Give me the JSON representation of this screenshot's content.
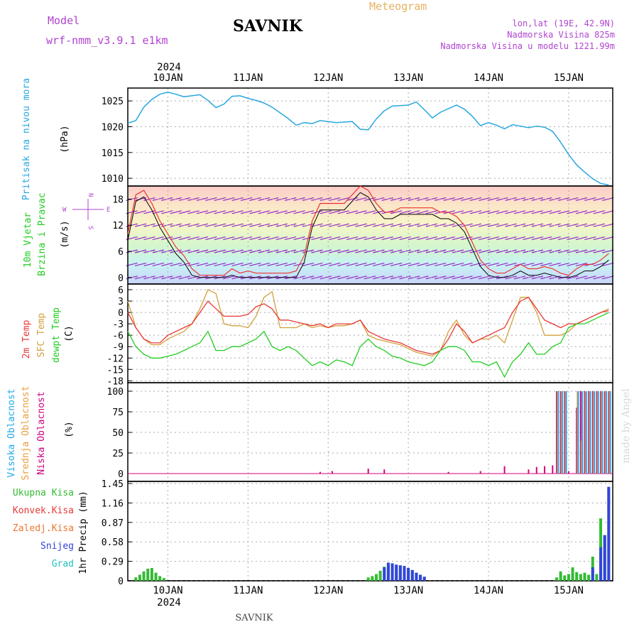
{
  "header": {
    "model_label": "Model",
    "model_name": "wrf-nmm_v3.9.1  e1km",
    "station": "SAVNIK",
    "meteogram": "Meteogram",
    "lonlat": "lon,lat (19E, 42.9N)",
    "altitude": "Nadmorska Visina 825m",
    "model_altitude": "Nadmorska Visina u modelu 1221.99m",
    "footer_station": "SAVNIK",
    "signature": "made by Angel"
  },
  "colors": {
    "pressure": "#29a8e0",
    "temp2m": "#e83838",
    "sfc": "#d4a03c",
    "dewpt": "#22cc22",
    "cloud_high": "#22a8e8",
    "cloud_mid": "#e8a040",
    "cloud_low": "#d0007c",
    "precip_total": "#33bb33",
    "precip_snow": "#3344dd",
    "header_purple": "#b044d0",
    "header_orange": "#e8b060"
  },
  "chart_data": [
    {
      "id": "pressure",
      "type": "line",
      "ylabel": "Pritisak na nivou mora",
      "unit": "(hPa)",
      "yticks": [
        1010,
        1015,
        1020,
        1025
      ],
      "ylim": [
        1008.5,
        1027.5
      ],
      "xlim": [
        -0.5,
        5.55
      ],
      "xtick_labels": [
        "10JAN",
        "11JAN",
        "12JAN",
        "13JAN",
        "14JAN",
        "15JAN"
      ],
      "year_label": "2024",
      "series": [
        {
          "x": [
            -0.5,
            -0.4,
            -0.3,
            -0.2,
            -0.1,
            0.0,
            0.1,
            0.2,
            0.3,
            0.4,
            0.5,
            0.6,
            0.7,
            0.8,
            0.9,
            1.0,
            1.1,
            1.2,
            1.3,
            1.4,
            1.5,
            1.6,
            1.7,
            1.8,
            1.9,
            2.0,
            2.1,
            2.2,
            2.3,
            2.4,
            2.5,
            2.6,
            2.7,
            2.8,
            2.9,
            3.0,
            3.1,
            3.2,
            3.3,
            3.4,
            3.5,
            3.6,
            3.7,
            3.8,
            3.9,
            4.0,
            4.1,
            4.2,
            4.3,
            4.4,
            4.5,
            4.6,
            4.7,
            4.8,
            4.9,
            5.0,
            5.1,
            5.2,
            5.3,
            5.4,
            5.5
          ],
          "values": [
            1020.7,
            1021.2,
            1023.8,
            1025.3,
            1026.3,
            1026.7,
            1026.3,
            1025.8,
            1026.0,
            1026.2,
            1025.1,
            1023.7,
            1024.4,
            1025.9,
            1026.0,
            1025.5,
            1025.1,
            1024.6,
            1023.8,
            1022.7,
            1021.6,
            1020.3,
            1020.8,
            1020.6,
            1021.2,
            1021.0,
            1020.8,
            1020.9,
            1021.0,
            1019.5,
            1019.4,
            1021.5,
            1023.1,
            1024.0,
            1024.1,
            1024.2,
            1024.8,
            1023.3,
            1021.7,
            1022.8,
            1023.5,
            1024.2,
            1023.4,
            1022.0,
            1020.2,
            1020.8,
            1020.3,
            1019.6,
            1020.4,
            1020.1,
            1019.8,
            1020.1,
            1019.9,
            1019.1,
            1017.0,
            1014.6,
            1012.6,
            1011.2,
            1009.9,
            1009.0,
            1008.7
          ]
        }
      ]
    },
    {
      "id": "wind",
      "type": "line",
      "ylabel_1": "10m Vjetar",
      "ylabel_2": "Brzina i Pravac",
      "unit": "(m/s)",
      "compass": {
        "n": "N",
        "s": "S",
        "w": "W",
        "e": "E"
      },
      "yticks": [
        0,
        6,
        12,
        18
      ],
      "ylim": [
        -1.5,
        21
      ],
      "series": [
        {
          "name": "speed",
          "x": [
            -0.5,
            -0.4,
            -0.3,
            -0.2,
            -0.1,
            0.0,
            0.1,
            0.2,
            0.3,
            0.4,
            0.5,
            0.6,
            0.7,
            0.8,
            0.9,
            1.0,
            1.1,
            1.2,
            1.3,
            1.4,
            1.5,
            1.6,
            1.7,
            1.8,
            1.9,
            2.0,
            2.1,
            2.2,
            2.3,
            2.4,
            2.5,
            2.6,
            2.7,
            2.8,
            2.9,
            3.0,
            3.1,
            3.2,
            3.3,
            3.4,
            3.5,
            3.6,
            3.7,
            3.8,
            3.9,
            4.0,
            4.1,
            4.2,
            4.3,
            4.4,
            4.5,
            4.6,
            4.7,
            4.8,
            4.9,
            5.0,
            5.1,
            5.2,
            5.3,
            5.4,
            5.5
          ],
          "values": [
            10,
            19,
            20,
            17,
            13,
            10,
            7,
            5,
            2,
            0.5,
            0.5,
            0.5,
            0.5,
            2,
            1,
            1.5,
            1,
            1,
            1,
            1,
            1,
            1.5,
            5,
            13,
            17,
            17,
            17,
            17,
            19,
            21,
            20,
            17,
            15,
            15,
            16,
            16,
            16,
            16,
            16,
            15,
            15,
            14,
            12,
            8,
            4,
            2,
            1,
            1,
            2,
            3,
            2,
            2,
            2.5,
            2,
            1,
            0.5,
            2,
            3,
            3,
            4,
            5.5
          ]
        }
      ]
    },
    {
      "id": "temperature",
      "type": "line",
      "ylabel_1": "2m Temp",
      "ylabel_2": "SFC Temp",
      "ylabel_3": "dewpt Temp",
      "unit": "(C)",
      "yticks": [
        -18,
        -15,
        -12,
        -9,
        -6,
        -3,
        0,
        3,
        6
      ],
      "ylim": [
        -18.5,
        7.5
      ],
      "series": [
        {
          "name": "2m Temp",
          "x": [
            -0.5,
            -0.4,
            -0.3,
            -0.2,
            -0.1,
            0.0,
            0.1,
            0.2,
            0.3,
            0.4,
            0.5,
            0.6,
            0.7,
            0.8,
            0.9,
            1.0,
            1.1,
            1.2,
            1.3,
            1.4,
            1.5,
            1.6,
            1.7,
            1.8,
            1.9,
            2.0,
            2.1,
            2.2,
            2.3,
            2.4,
            2.5,
            2.6,
            2.7,
            2.8,
            2.9,
            3.0,
            3.1,
            3.2,
            3.3,
            3.4,
            3.5,
            3.6,
            3.7,
            3.8,
            3.9,
            4.0,
            4.1,
            4.2,
            4.3,
            4.4,
            4.5,
            4.6,
            4.7,
            4.8,
            4.9,
            5.0,
            5.1,
            5.2,
            5.3,
            5.4,
            5.5
          ],
          "values": [
            0,
            -4,
            -7,
            -8,
            -8,
            -6,
            -5,
            -4,
            -3,
            0,
            3,
            1,
            -1,
            -1,
            -1,
            -0.5,
            1.5,
            2.3,
            1,
            -2,
            -2,
            -2.5,
            -3,
            -3.5,
            -3,
            -4,
            -3,
            -3,
            -3,
            -2,
            -5,
            -6,
            -7,
            -7.5,
            -8,
            -9,
            -10,
            -10.5,
            -11,
            -10,
            -7,
            -3,
            -5,
            -8,
            -7,
            -6,
            -5,
            -4,
            0,
            3,
            4,
            1,
            -2,
            -3,
            -4,
            -3,
            -3,
            -2,
            -1,
            0,
            0.5
          ]
        },
        {
          "name": "SFC Temp",
          "x": [
            -0.5,
            -0.4,
            -0.3,
            -0.2,
            -0.1,
            0.0,
            0.1,
            0.2,
            0.3,
            0.4,
            0.5,
            0.6,
            0.7,
            0.8,
            0.9,
            1.0,
            1.1,
            1.2,
            1.3,
            1.4,
            1.5,
            1.6,
            1.7,
            1.8,
            1.9,
            2.0,
            2.1,
            2.2,
            2.3,
            2.4,
            2.5,
            2.6,
            2.7,
            2.8,
            2.9,
            3.0,
            3.1,
            3.2,
            3.3,
            3.4,
            3.5,
            3.6,
            3.7,
            3.8,
            3.9,
            4.0,
            4.1,
            4.2,
            4.3,
            4.4,
            4.5,
            4.6,
            4.7,
            4.8,
            4.9,
            5.0,
            5.1,
            5.2,
            5.3,
            5.4,
            5.5
          ],
          "values": [
            3,
            -4,
            -7,
            -8.5,
            -8.5,
            -7,
            -6,
            -5,
            -3,
            1,
            6,
            5,
            -3,
            -3.5,
            -3.5,
            -4,
            -1,
            4,
            5.5,
            -4,
            -4,
            -4,
            -3,
            -4,
            -3.5,
            -4,
            -3.5,
            -3.5,
            -3,
            -2,
            -6,
            -7,
            -7.5,
            -8,
            -8.5,
            -9.5,
            -10.5,
            -11,
            -11.5,
            -10,
            -5,
            -2,
            -6,
            -8,
            -7,
            -7,
            -6,
            -8,
            -2,
            4,
            4,
            0,
            -6,
            -6,
            -6,
            -5,
            -3,
            -2,
            -1,
            0,
            1
          ]
        },
        {
          "name": "dewpt Temp",
          "x": [
            -0.5,
            -0.4,
            -0.3,
            -0.2,
            -0.1,
            0.0,
            0.1,
            0.2,
            0.3,
            0.4,
            0.5,
            0.6,
            0.7,
            0.8,
            0.9,
            1.0,
            1.1,
            1.2,
            1.3,
            1.4,
            1.5,
            1.6,
            1.7,
            1.8,
            1.9,
            2.0,
            2.1,
            2.2,
            2.3,
            2.4,
            2.5,
            2.6,
            2.7,
            2.8,
            2.9,
            3.0,
            3.1,
            3.2,
            3.3,
            3.4,
            3.5,
            3.6,
            3.7,
            3.8,
            3.9,
            4.0,
            4.1,
            4.2,
            4.3,
            4.4,
            4.5,
            4.6,
            4.7,
            4.8,
            4.9,
            5.0,
            5.1,
            5.2,
            5.3,
            5.4,
            5.5
          ],
          "values": [
            -5,
            -9,
            -11,
            -12,
            -12,
            -11.5,
            -11,
            -10,
            -9,
            -8,
            -5,
            -10,
            -10,
            -9,
            -9,
            -8,
            -7,
            -5,
            -9,
            -10,
            -9,
            -10,
            -12,
            -14,
            -13,
            -14,
            -12.5,
            -13,
            -14,
            -9,
            -7,
            -9,
            -10,
            -11.5,
            -12,
            -13,
            -13.5,
            -14,
            -13,
            -10,
            -9,
            -9,
            -10,
            -13,
            -13,
            -14,
            -13,
            -17,
            -13,
            -11,
            -8,
            -11,
            -11,
            -9,
            -8,
            -4,
            -3,
            -3,
            -2,
            -1,
            0
          ]
        }
      ]
    },
    {
      "id": "clouds",
      "type": "bar",
      "ylabel_1": "Visoka Oblacnost",
      "ylabel_2": "Srednja Oblacnost",
      "ylabel_3": "Niska Oblacnost",
      "unit": "(%)",
      "yticks": [
        0,
        25,
        50,
        75,
        100
      ],
      "ylim": [
        0,
        100
      ],
      "series": [
        {
          "name": "Niska Oblacnost",
          "x": [
            1.9,
            2.05,
            2.5,
            2.7,
            3.5,
            3.9,
            4.2,
            4.5,
            4.6,
            4.7,
            4.8,
            4.85,
            4.9,
            4.95,
            5.0,
            5.1,
            5.15,
            5.2,
            5.25,
            5.3,
            5.35,
            5.4,
            5.45,
            5.5
          ],
          "values": [
            2,
            3,
            6,
            5,
            2,
            3,
            9,
            5,
            8,
            9,
            10,
            100,
            100,
            100,
            3,
            80,
            100,
            100,
            100,
            100,
            100,
            100,
            100,
            100
          ]
        },
        {
          "name": "Srednja Oblacnost",
          "x": [
            4.86,
            4.91,
            4.96,
            5.11,
            5.16,
            5.21,
            5.26,
            5.31,
            5.36,
            5.41,
            5.46,
            5.51
          ],
          "values": [
            100,
            100,
            100,
            100,
            40,
            100,
            100,
            100,
            100,
            100,
            100,
            100
          ]
        },
        {
          "name": "Visoka Oblacnost",
          "x": [
            4.87,
            4.92,
            4.97,
            5.12,
            5.17,
            5.22,
            5.27,
            5.32,
            5.37,
            5.42,
            5.47,
            5.52
          ],
          "values": [
            100,
            100,
            100,
            100,
            100,
            100,
            100,
            100,
            100,
            100,
            100,
            100
          ]
        }
      ]
    },
    {
      "id": "precip",
      "type": "bar",
      "legend": [
        "Ukupna Kisa",
        "Konvek.Kisa",
        "Zaledj.Kisa",
        "Snijeg",
        "Grad"
      ],
      "legend_colors": [
        "#33bb33",
        "#e83838",
        "#e87830",
        "#3344dd",
        "#22c0c0"
      ],
      "ylabel": "1hr Precip (mm)",
      "yticks": [
        0,
        0.29,
        0.58,
        0.87,
        1.16,
        1.45
      ],
      "ylim": [
        0,
        1.45
      ],
      "series": [
        {
          "name": "Ukupna Kisa",
          "x": [
            -0.4,
            -0.35,
            -0.3,
            -0.25,
            -0.2,
            -0.15,
            -0.1,
            -0.05,
            2.5,
            2.55,
            2.6,
            2.65,
            2.7,
            2.75,
            2.8,
            2.85,
            2.9,
            2.95,
            3.0,
            3.05,
            3.1,
            3.15,
            3.2,
            4.85,
            4.9,
            4.95,
            5.0,
            5.05,
            5.1,
            5.15,
            5.2,
            5.25,
            5.3,
            5.35,
            5.4,
            5.45,
            5.5
          ],
          "values": [
            0.05,
            0.09,
            0.14,
            0.18,
            0.19,
            0.12,
            0.07,
            0.04,
            0.05,
            0.07,
            0.1,
            0.15,
            0.21,
            0.27,
            0.26,
            0.24,
            0.23,
            0.22,
            0.19,
            0.16,
            0.12,
            0.09,
            0.06,
            0.05,
            0.14,
            0.08,
            0.1,
            0.2,
            0.13,
            0.1,
            0.12,
            0.09,
            0.36,
            0.1,
            0.93,
            0.68,
            1.4
          ]
        },
        {
          "name": "Snijeg",
          "x": [
            2.7,
            2.75,
            2.8,
            2.85,
            2.9,
            2.95,
            3.0,
            3.05,
            3.1,
            3.15,
            3.2,
            5.3,
            5.4,
            5.45,
            5.5
          ],
          "values": [
            0.2,
            0.27,
            0.26,
            0.24,
            0.23,
            0.22,
            0.19,
            0.16,
            0.12,
            0.09,
            0.06,
            0.2,
            0.5,
            0.68,
            1.4
          ]
        }
      ]
    }
  ]
}
